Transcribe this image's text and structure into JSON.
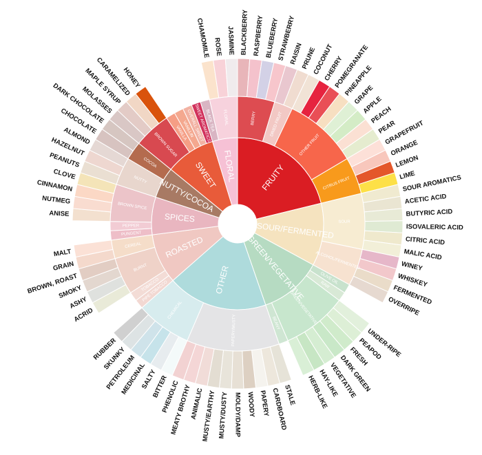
{
  "wheel": [
    {
      "label": "FRUITY",
      "color": "#da1d23",
      "children": [
        {
          "label": "BERRY",
          "color": "#dd4c51",
          "children": [
            {
              "label": "BLACKBERRY",
              "color": "#e8b5b9"
            },
            {
              "label": "RASPBERRY",
              "color": "#f4c2cc"
            },
            {
              "label": "BLUEBERRY",
              "color": "#d3d1e6"
            },
            {
              "label": "STRAWBERRY",
              "color": "#f7c6cc"
            }
          ]
        },
        {
          "label": "DRIED FRUIT",
          "color": "#f2c8c4",
          "children": [
            {
              "label": "RAISIN",
              "color": "#e9c7cf"
            },
            {
              "label": "PRUNE",
              "color": "#f0dcd0"
            }
          ]
        },
        {
          "label": "OTHER FRUIT",
          "color": "#f7664b",
          "children": [
            {
              "label": "COCONUT",
              "color": "#f1e3d6"
            },
            {
              "label": "CHERRY",
              "color": "#e6233f"
            },
            {
              "label": "POMEGRANATE",
              "color": "#e94f56"
            },
            {
              "label": "PINEAPPLE",
              "color": "#f7dfc1"
            },
            {
              "label": "GRAPE",
              "color": "#dff0d5"
            },
            {
              "label": "APPLE",
              "color": "#d4ecc6"
            },
            {
              "label": "PEACH",
              "color": "#fbe0d3"
            },
            {
              "label": "PEAR",
              "color": "#e5eccf"
            }
          ]
        },
        {
          "label": "CITRUS FRUIT",
          "color": "#f89a1c",
          "children": [
            {
              "label": "GRAPEFRUIT",
              "color": "#fde0d8"
            },
            {
              "label": "ORANGE",
              "color": "#f8c7bc"
            },
            {
              "label": "LEMON",
              "color": "#e4572a"
            },
            {
              "label": "LIME",
              "color": "#fde047"
            }
          ]
        }
      ]
    },
    {
      "label": "SOUR/FERMENTED",
      "color": "#f5e3bf",
      "children": [
        {
          "label": "SOUR",
          "color": "#f7ecd2",
          "children": [
            {
              "label": "SOUR AROMATICS",
              "color": "#f0ead0"
            },
            {
              "label": "ACETIC ACID",
              "color": "#eae5d2"
            },
            {
              "label": "BUTYRIC ACID",
              "color": "#e8ead6"
            },
            {
              "label": "ISOVALERIC ACID",
              "color": "#dfead3"
            },
            {
              "label": "CITRIC ACID",
              "color": "#efe9cd"
            },
            {
              "label": "MALIC ACID",
              "color": "#f2efd8"
            }
          ]
        },
        {
          "label": "ALCOHOL/FERMENTED",
          "color": "#f7e2d0",
          "children": [
            {
              "label": "WINEY",
              "color": "#e6b7c9"
            },
            {
              "label": "WHISKEY",
              "color": "#f2c8cb"
            },
            {
              "label": "FERMENTED",
              "color": "#eadcc9"
            },
            {
              "label": "OVERRIPE",
              "color": "#e6d9d0"
            }
          ]
        }
      ]
    },
    {
      "label": "GREEN/VEGETATIVE",
      "color": "#b6dbc2",
      "children": [
        {
          "label": "OLIVE OIL",
          "color": "#c8e2cd"
        },
        {
          "label": "RAW",
          "color": "#d8e9d6"
        },
        {
          "label": "GREEN/VEGETATIVE",
          "color": "#c7e6cd",
          "children": [
            {
              "label": "UNDER-RIPE",
              "color": "#e2f0dc"
            },
            {
              "label": "PEAPOD",
              "color": "#ddefd6"
            },
            {
              "label": "FRESH",
              "color": "#d0ebcb"
            },
            {
              "label": "DARK GREEN",
              "color": "#c9e8c8"
            },
            {
              "label": "VEGETATIVE",
              "color": "#d5edd2"
            },
            {
              "label": "HAY-LIKE",
              "color": "#c7e6c4"
            },
            {
              "label": "HERB-LIKE",
              "color": "#d9efd6"
            }
          ]
        },
        {
          "label": "BEANY",
          "color": "#cfe6d3"
        }
      ]
    },
    {
      "label": "OTHER",
      "color": "#aedbdc",
      "children": [
        {
          "label": "PAPERY/MUSTY",
          "color": "#e4e4e6",
          "children": [
            {
              "label": "STALE",
              "color": "#e6e3d8"
            },
            {
              "label": "CARDBOARD",
              "color": "#ede7dc"
            },
            {
              "label": "PAPERY",
              "color": "#f5f3ee"
            },
            {
              "label": "WOODY",
              "color": "#ddd0c2"
            },
            {
              "label": "MOLDY/DAMP",
              "color": "#e7e0d5"
            },
            {
              "label": "MUSTY/DUSTY",
              "color": "#e8e4da"
            },
            {
              "label": "MUSTY/EARTHY",
              "color": "#e3ddd2"
            },
            {
              "label": "ANIMALIC",
              "color": "#f1dcd8"
            },
            {
              "label": "MEATY BROTHY",
              "color": "#f4d6d6"
            },
            {
              "label": "PHENOLIC",
              "color": "#f2d2d2"
            }
          ]
        },
        {
          "label": "CHEMICAL",
          "color": "#d7ecee",
          "children": [
            {
              "label": "BITTER",
              "color": "#f4fafa"
            },
            {
              "label": "SALTY",
              "color": "#e7ecef"
            },
            {
              "label": "MEDICINAL",
              "color": "#c6e3ea"
            },
            {
              "label": "PETROLEUM",
              "color": "#cfe3ea"
            },
            {
              "label": "SKUNKY",
              "color": "#dde3e4"
            },
            {
              "label": "RUBBER",
              "color": "#d0d0d0"
            }
          ]
        }
      ]
    },
    {
      "label": "ROASTED",
      "color": "#f0c8c2",
      "children": [
        {
          "label": "PIPE TOBACCO",
          "color": "#f2d8d2"
        },
        {
          "label": "TOBACCO",
          "color": "#f3dcd6"
        },
        {
          "label": "BURNT",
          "color": "#efd2c8",
          "children": [
            {
              "label": "ACRID",
              "color": "#e9ead8"
            },
            {
              "label": "ASHY",
              "color": "#dfe1de"
            },
            {
              "label": "SMOKY",
              "color": "#e3d7cf"
            },
            {
              "label": "BROWN, ROAST",
              "color": "#e2cdc3"
            }
          ]
        },
        {
          "label": "CEREAL",
          "color": "#f5ddc9",
          "children": [
            {
              "label": "GRAIN",
              "color": "#f4d9cc"
            },
            {
              "label": "MALT",
              "color": "#fbe1d6"
            }
          ]
        }
      ]
    },
    {
      "label": "SPICES",
      "color": "#e9b6c0",
      "children": [
        {
          "label": "PUNGENT",
          "color": "#eebec8"
        },
        {
          "label": "PEPPER",
          "color": "#f2ccd4"
        },
        {
          "label": "BROWN SPICE",
          "color": "#ecc4c9",
          "children": [
            {
              "label": "ANISE",
              "color": "#f3e0cf"
            },
            {
              "label": "NUTMEG",
              "color": "#f9dcd0"
            },
            {
              "label": "CINNAMON",
              "color": "#fbd8c5"
            },
            {
              "label": "CLOVE",
              "color": "#f4e4b8"
            }
          ]
        }
      ]
    },
    {
      "label": "NUTTY/COCOA",
      "color": "#a87a64",
      "children": [
        {
          "label": "NUTTY",
          "color": "#e8d6cd",
          "children": [
            {
              "label": "PEANUTS",
              "color": "#eadfd2"
            },
            {
              "label": "HAZELNUT",
              "color": "#eed7d0"
            },
            {
              "label": "ALMOND",
              "color": "#e5d8d4"
            }
          ]
        },
        {
          "label": "COCOA",
          "color": "#b46b4e",
          "children": [
            {
              "label": "CHOCOLATE",
              "color": "#d7c3c0"
            },
            {
              "label": "DARK CHOCOLATE",
              "color": "#d6c6c1"
            }
          ]
        }
      ]
    },
    {
      "label": "SWEET",
      "color": "#e85b3a",
      "children": [
        {
          "label": "BROWN SUGAR",
          "color": "#d84950",
          "children": [
            {
              "label": "MOLASSES",
              "color": "#d9c7c5"
            },
            {
              "label": "MAPLE SYRUP",
              "color": "#e3cbc6"
            },
            {
              "label": "CARAMELIZED",
              "color": "#f1d7c5"
            },
            {
              "label": "HONEY",
              "color": "#d9530c"
            }
          ]
        },
        {
          "label": "VANILLA",
          "color": "#f59e85"
        },
        {
          "label": "VANILLIN",
          "color": "#f4a88f"
        },
        {
          "label": "OVERALL SWEET",
          "color": "#f2b2a3"
        },
        {
          "label": "SWEET AROMATICS",
          "color": "#d1325c"
        }
      ]
    },
    {
      "label": "FLORAL",
      "color": "#f6c1d5",
      "children": [
        {
          "label": "BLACK TEA",
          "color": "#d9b5c3"
        },
        {
          "label": "FLORAL",
          "color": "#f7d2dd",
          "children": [
            {
              "label": "CHAMOMILE",
              "color": "#fbe3cc"
            },
            {
              "label": "ROSE",
              "color": "#f8d2d8"
            },
            {
              "label": "JASMINE",
              "color": "#f0ebed"
            }
          ]
        }
      ]
    }
  ]
}
